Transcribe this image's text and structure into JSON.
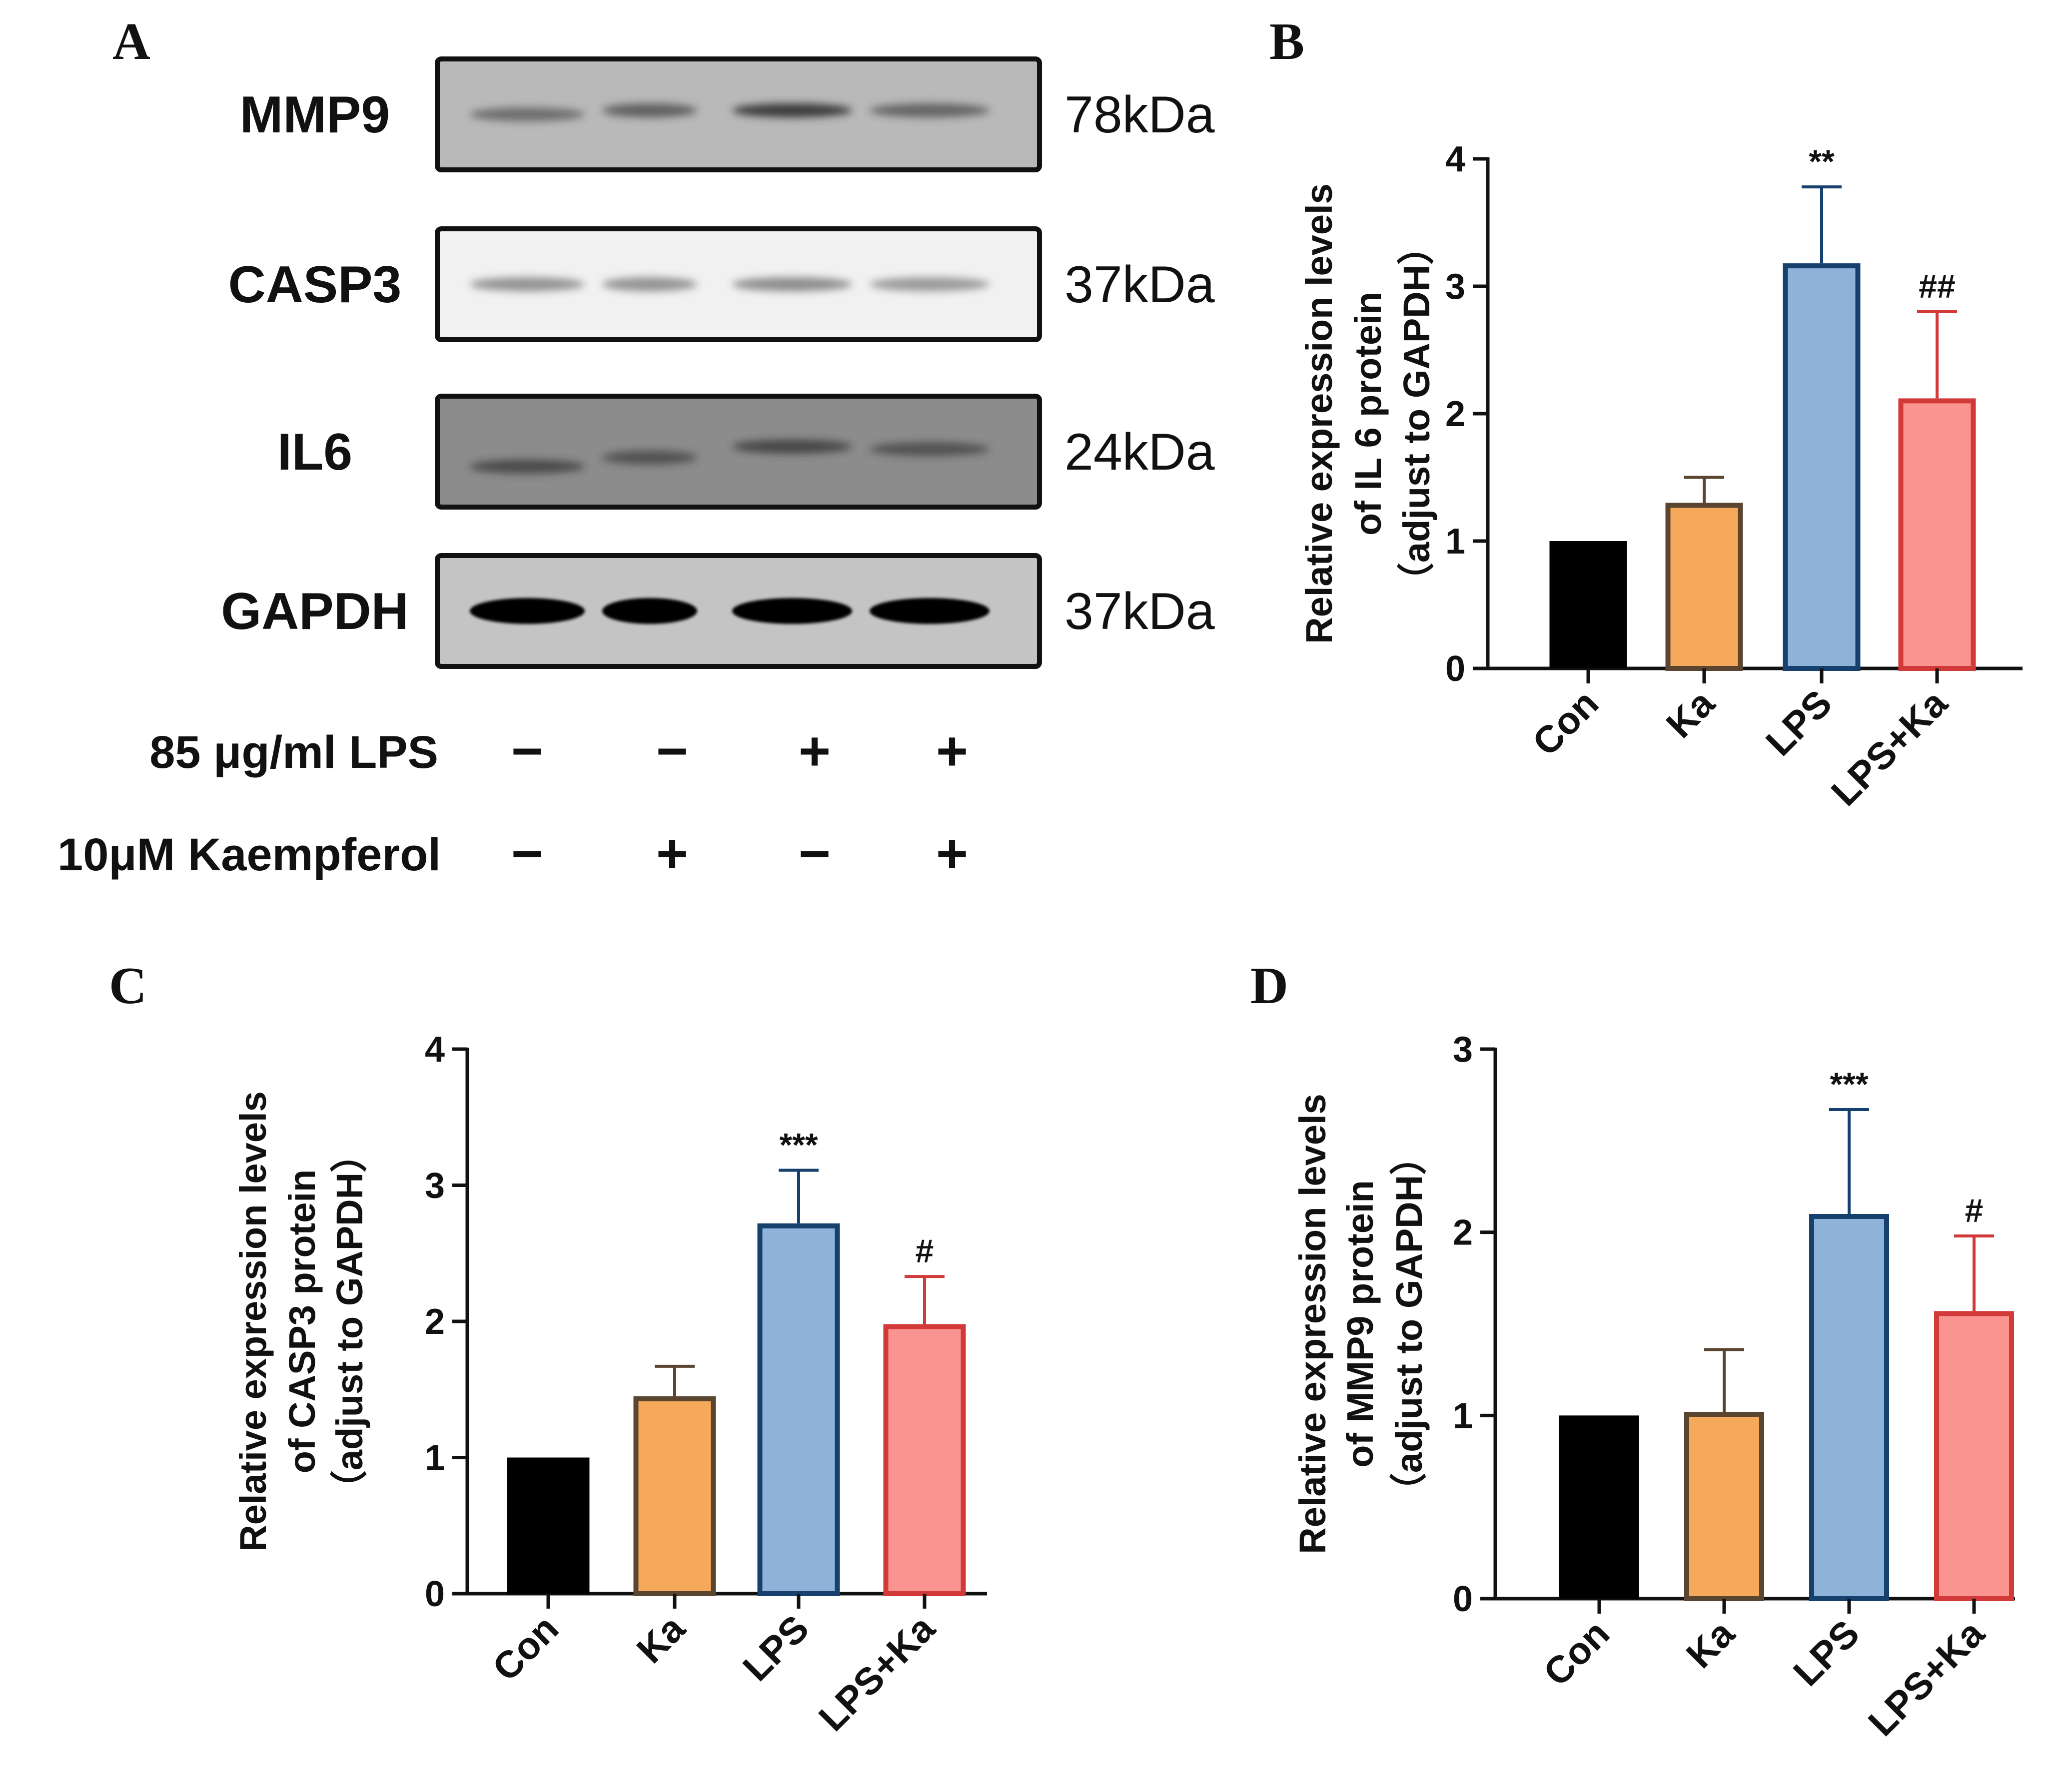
{
  "panel_labels": {
    "a": "A",
    "b": "B",
    "c": "C",
    "d": "D"
  },
  "western_blot": {
    "rows": [
      {
        "name": "MMP9",
        "kda": "78kDa",
        "intensity": [
          0.45,
          0.6,
          1.0,
          0.55
        ]
      },
      {
        "name": "CASP3",
        "kda": "37kDa",
        "intensity": [
          0.35,
          0.35,
          0.4,
          0.3
        ]
      },
      {
        "name": "IL6",
        "kda": "24kDa",
        "intensity": [
          0.55,
          0.45,
          0.6,
          0.45
        ]
      },
      {
        "name": "GAPDH",
        "kda": "37kDa",
        "intensity": [
          1.0,
          1.0,
          1.0,
          1.0
        ]
      }
    ],
    "conditions": [
      {
        "label": "85 μg/ml LPS",
        "signs": [
          "−",
          "−",
          "+",
          "+"
        ]
      },
      {
        "label": "10μM Kaempferol",
        "signs": [
          "−",
          "+",
          "−",
          "+"
        ]
      }
    ]
  },
  "colors": {
    "con_fill": "#000000",
    "con_edge": "#000000",
    "ka_fill": "#f6a95a",
    "ka_edge": "#5a4530",
    "lps_fill": "#8fb3d8",
    "lps_edge": "#16406e",
    "lpska_fill": "#fa9490",
    "lpska_edge": "#d23a3a"
  },
  "chart_data": [
    {
      "type": "bar",
      "panel": "B",
      "ylabel_lines": [
        "Relative expression levels",
        "of IL 6 protein",
        "（adjust to GAPDH）"
      ],
      "categories": [
        "Con",
        "Ka",
        "LPS",
        "LPS+Ka"
      ],
      "values": [
        1.0,
        1.3,
        3.18,
        2.12
      ],
      "errors": [
        0,
        0.2,
        0.6,
        0.68
      ],
      "significance": [
        "",
        "",
        "**",
        "##"
      ],
      "ylim": [
        0,
        4
      ],
      "yticks": [
        "0",
        "1",
        "2",
        "3",
        "4"
      ]
    },
    {
      "type": "bar",
      "panel": "C",
      "ylabel_lines": [
        "Relative expression levels",
        "of CASP3 protein",
        "（adjust to GAPDH）"
      ],
      "categories": [
        "Con",
        "Ka",
        "LPS",
        "LPS+Ka"
      ],
      "values": [
        1.0,
        1.45,
        2.72,
        1.98
      ],
      "errors": [
        0,
        0.22,
        0.39,
        0.35
      ],
      "significance": [
        "",
        "",
        "***",
        "#"
      ],
      "ylim": [
        0,
        4
      ],
      "yticks": [
        "0",
        "1",
        "2",
        "3",
        "4"
      ]
    },
    {
      "type": "bar",
      "panel": "D",
      "ylabel_lines": [
        "Relative expression levels",
        "of MMP9 protein",
        "（adjust to GAPDH）"
      ],
      "categories": [
        "Con",
        "Ka",
        "LPS",
        "LPS+Ka"
      ],
      "values": [
        1.0,
        1.02,
        2.1,
        1.57
      ],
      "errors": [
        0,
        0.34,
        0.57,
        0.41
      ],
      "significance": [
        "",
        "",
        "***",
        "#"
      ],
      "ylim": [
        0,
        3
      ],
      "yticks": [
        "0",
        "1",
        "2",
        "3"
      ]
    }
  ]
}
